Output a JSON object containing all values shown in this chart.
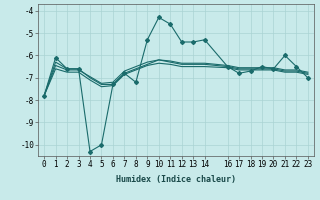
{
  "title": "",
  "xlabel": "Humidex (Indice chaleur)",
  "ylabel": "",
  "bg_color": "#c8eaea",
  "grid_color": "#aad4d4",
  "line_color": "#1a6b6b",
  "xlim": [
    -0.5,
    23.5
  ],
  "ylim": [
    -10.5,
    -3.7
  ],
  "yticks": [
    -10,
    -9,
    -8,
    -7,
    -6,
    -5,
    -4
  ],
  "xticks": [
    0,
    1,
    2,
    3,
    4,
    5,
    6,
    7,
    8,
    9,
    10,
    11,
    12,
    13,
    14,
    16,
    17,
    18,
    19,
    20,
    21,
    22,
    23
  ],
  "lines": [
    {
      "x": [
        0,
        1,
        2,
        3,
        4,
        5,
        6,
        7,
        8,
        9,
        10,
        11,
        12,
        13,
        14,
        16,
        17,
        18,
        19,
        20,
        21,
        22,
        23
      ],
      "y": [
        -7.8,
        -6.1,
        -6.6,
        -6.6,
        -10.3,
        -10.0,
        -7.3,
        -6.8,
        -7.2,
        -5.3,
        -4.3,
        -4.6,
        -5.4,
        -5.4,
        -5.3,
        -6.5,
        -6.8,
        -6.7,
        -6.5,
        -6.6,
        -6.0,
        -6.5,
        -7.0
      ],
      "marker": true
    },
    {
      "x": [
        0,
        1,
        2,
        3,
        4,
        5,
        6,
        7,
        8,
        9,
        10,
        11,
        12,
        13,
        14,
        16,
        17,
        18,
        19,
        20,
        21,
        22,
        23
      ],
      "y": [
        -7.8,
        -6.6,
        -6.75,
        -6.75,
        -7.1,
        -7.4,
        -7.35,
        -6.85,
        -6.65,
        -6.45,
        -6.35,
        -6.4,
        -6.5,
        -6.5,
        -6.5,
        -6.55,
        -6.65,
        -6.65,
        -6.65,
        -6.65,
        -6.75,
        -6.75,
        -6.85
      ],
      "marker": false
    },
    {
      "x": [
        0,
        1,
        2,
        3,
        4,
        5,
        6,
        7,
        8,
        9,
        10,
        11,
        12,
        13,
        14,
        16,
        17,
        18,
        19,
        20,
        21,
        22,
        23
      ],
      "y": [
        -7.8,
        -6.45,
        -6.65,
        -6.65,
        -6.95,
        -7.25,
        -7.2,
        -6.7,
        -6.5,
        -6.3,
        -6.2,
        -6.25,
        -6.35,
        -6.35,
        -6.35,
        -6.45,
        -6.55,
        -6.55,
        -6.55,
        -6.55,
        -6.65,
        -6.65,
        -6.75
      ],
      "marker": false
    },
    {
      "x": [
        0,
        1,
        2,
        3,
        4,
        5,
        6,
        7,
        8,
        9,
        10,
        11,
        12,
        13,
        14,
        16,
        17,
        18,
        19,
        20,
        21,
        22,
        23
      ],
      "y": [
        -7.8,
        -6.3,
        -6.6,
        -6.6,
        -7.0,
        -7.3,
        -7.3,
        -6.8,
        -6.6,
        -6.4,
        -6.2,
        -6.3,
        -6.4,
        -6.4,
        -6.4,
        -6.5,
        -6.6,
        -6.6,
        -6.6,
        -6.6,
        -6.7,
        -6.7,
        -6.8
      ],
      "marker": false
    }
  ]
}
